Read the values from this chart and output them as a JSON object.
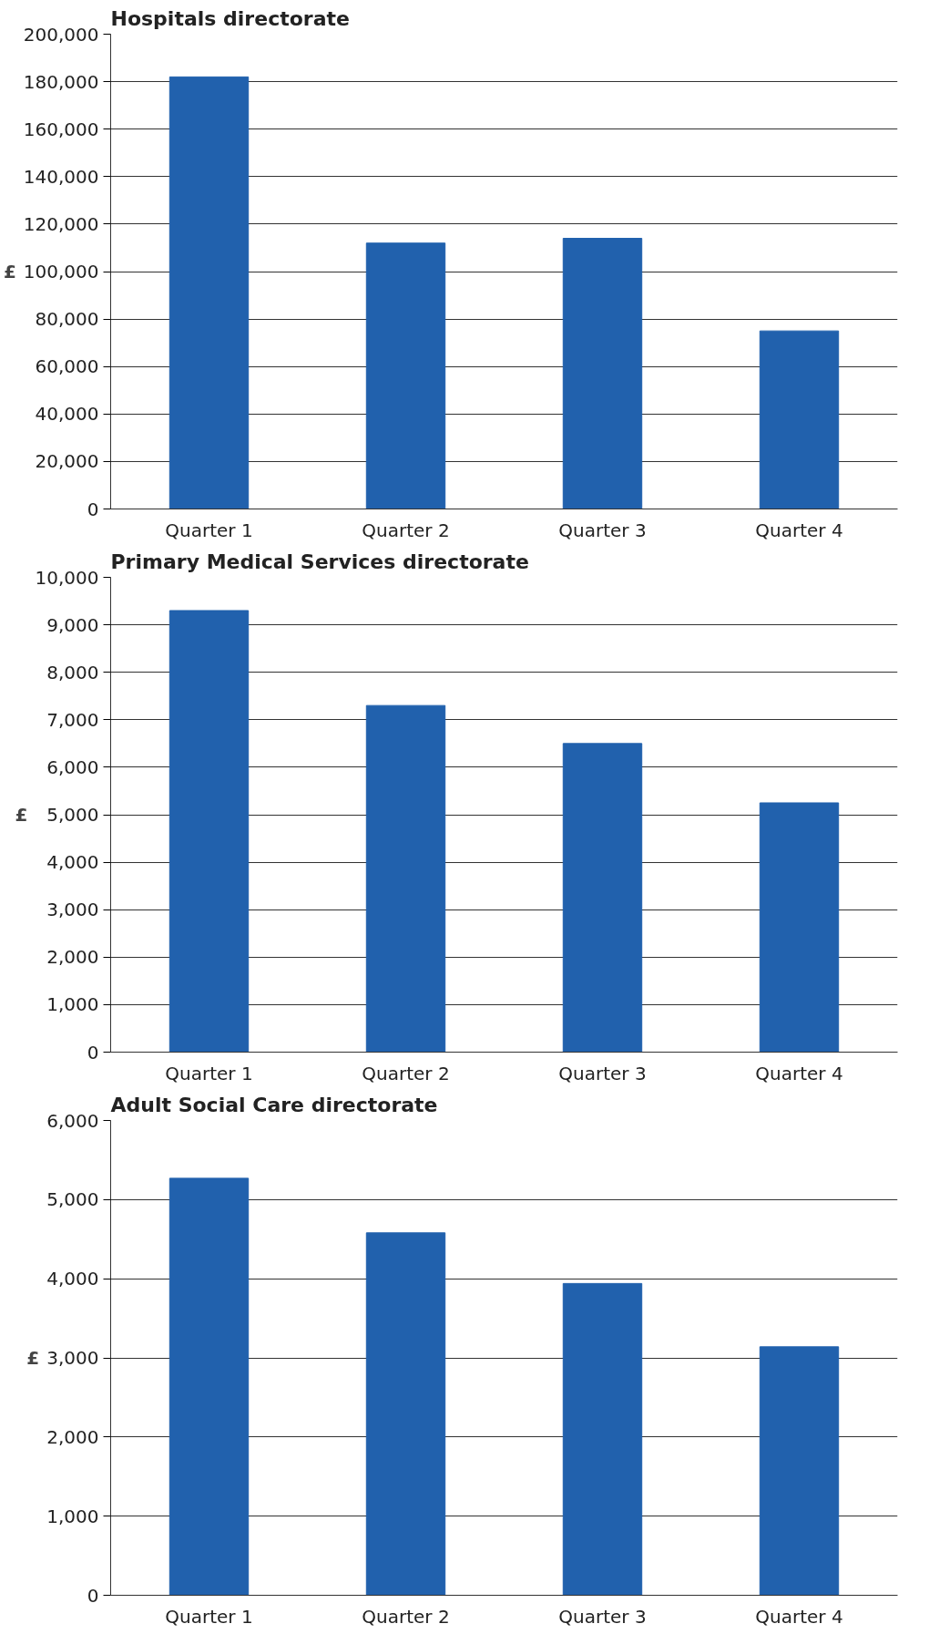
{
  "chart_data": [
    {
      "type": "bar",
      "title": "Hospitals directorate",
      "ylabel": "£",
      "categories": [
        "Quarter 1",
        "Quarter 2",
        "Quarter 3",
        "Quarter 4"
      ],
      "values": [
        182000,
        112000,
        114000,
        75000
      ],
      "color": "#2161ad",
      "ylim": [
        0,
        200000
      ],
      "yticks": [
        {
          "value": 0,
          "label": "0"
        },
        {
          "value": 20000,
          "label": "20,000"
        },
        {
          "value": 40000,
          "label": "40,000"
        },
        {
          "value": 60000,
          "label": "60,000"
        },
        {
          "value": 80000,
          "label": "80,000"
        },
        {
          "value": 100000,
          "label": "100,000"
        },
        {
          "value": 120000,
          "label": "120,000"
        },
        {
          "value": 140000,
          "label": "140,000"
        },
        {
          "value": 160000,
          "label": "160,000"
        },
        {
          "value": 180000,
          "label": "180,000"
        },
        {
          "value": 200000,
          "label": "200,000"
        }
      ],
      "grid": "y"
    },
    {
      "type": "bar",
      "title": "Primary Medical Services directorate",
      "ylabel": "£",
      "categories": [
        "Quarter 1",
        "Quarter 2",
        "Quarter 3",
        "Quarter 4"
      ],
      "values": [
        9300,
        7300,
        6500,
        5250
      ],
      "color": "#2161ad",
      "ylim": [
        0,
        10000
      ],
      "yticks": [
        {
          "value": 0,
          "label": "0"
        },
        {
          "value": 1000,
          "label": "1,000"
        },
        {
          "value": 2000,
          "label": "2,000"
        },
        {
          "value": 3000,
          "label": "3,000"
        },
        {
          "value": 4000,
          "label": "4,000"
        },
        {
          "value": 5000,
          "label": "5,000"
        },
        {
          "value": 6000,
          "label": "6,000"
        },
        {
          "value": 7000,
          "label": "7,000"
        },
        {
          "value": 8000,
          "label": "8,000"
        },
        {
          "value": 9000,
          "label": "9,000"
        },
        {
          "value": 10000,
          "label": "10,000"
        }
      ],
      "grid": "y"
    },
    {
      "type": "bar",
      "title": "Adult Social Care directorate",
      "ylabel": "£",
      "categories": [
        "Quarter 1",
        "Quarter 2",
        "Quarter 3",
        "Quarter 4"
      ],
      "values": [
        5270,
        4580,
        3940,
        3140
      ],
      "color": "#2161ad",
      "ylim": [
        0,
        6000
      ],
      "yticks": [
        {
          "value": 0,
          "label": "0"
        },
        {
          "value": 1000,
          "label": "1,000"
        },
        {
          "value": 2000,
          "label": "2,000"
        },
        {
          "value": 3000,
          "label": "3,000"
        },
        {
          "value": 4000,
          "label": "4,000"
        },
        {
          "value": 5000,
          "label": "5,000"
        },
        {
          "value": 6000,
          "label": "6,000"
        }
      ],
      "grid": "y"
    }
  ]
}
